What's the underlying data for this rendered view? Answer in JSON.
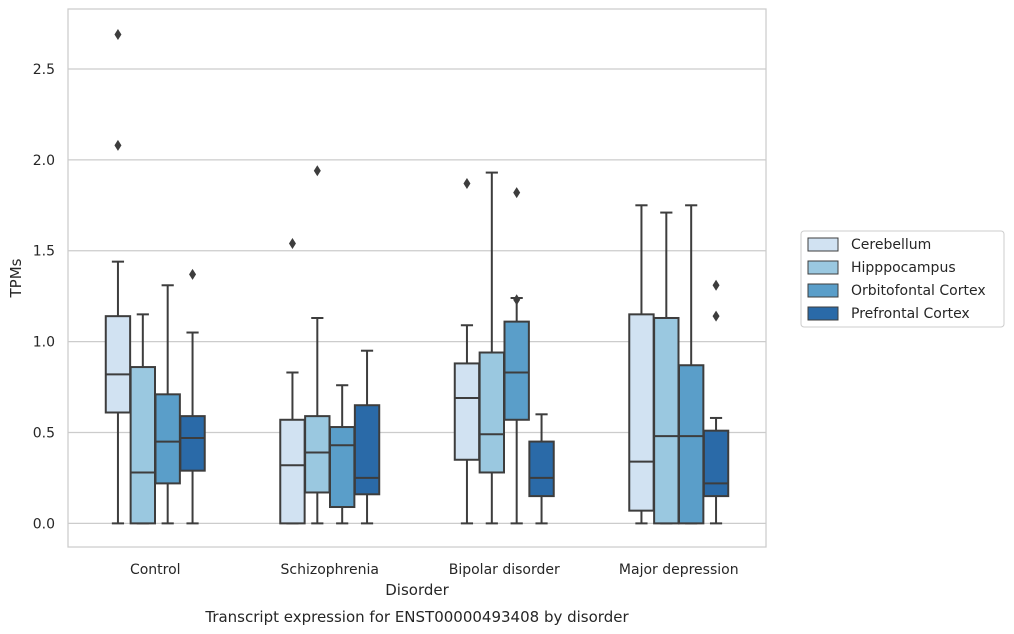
{
  "chart_data": {
    "type": "boxplot",
    "title": "",
    "caption": "Transcript expression for ENST00000493408 by disorder",
    "xlabel": "Disorder",
    "ylabel": "TPMs",
    "ylim": [
      -0.13,
      2.83
    ],
    "yticks": [
      0.0,
      0.5,
      1.0,
      1.5,
      2.0,
      2.5
    ],
    "ytick_labels": [
      "0.0",
      "0.5",
      "1.0",
      "1.5",
      "2.0",
      "2.5"
    ],
    "categories": [
      "Control",
      "Schizophrenia",
      "Bipolar disorder",
      "Major depression"
    ],
    "grid": "horizontal",
    "legend_placement": "right",
    "series": [
      {
        "name": "Cerebellum",
        "color": "#d1e2f2",
        "boxes": [
          {
            "whisker_low": 0.0,
            "q1": 0.61,
            "median": 0.82,
            "q3": 1.14,
            "whisker_high": 1.44,
            "outliers": [
              2.08,
              2.69
            ]
          },
          {
            "whisker_low": 0.0,
            "q1": 0.0,
            "median": 0.32,
            "q3": 0.57,
            "whisker_high": 0.83,
            "outliers": [
              1.54
            ]
          },
          {
            "whisker_low": 0.0,
            "q1": 0.35,
            "median": 0.69,
            "q3": 0.88,
            "whisker_high": 1.09,
            "outliers": [
              1.87
            ]
          },
          {
            "whisker_low": 0.0,
            "q1": 0.07,
            "median": 0.34,
            "q3": 1.15,
            "whisker_high": 1.75,
            "outliers": []
          }
        ]
      },
      {
        "name": "Hipppocampus",
        "color": "#9ac8e0",
        "boxes": [
          {
            "whisker_low": 0.0,
            "q1": 0.0,
            "median": 0.28,
            "q3": 0.86,
            "whisker_high": 1.15,
            "outliers": []
          },
          {
            "whisker_low": 0.0,
            "q1": 0.17,
            "median": 0.39,
            "q3": 0.59,
            "whisker_high": 1.13,
            "outliers": [
              1.94
            ]
          },
          {
            "whisker_low": 0.0,
            "q1": 0.28,
            "median": 0.49,
            "q3": 0.94,
            "whisker_high": 1.93,
            "outliers": []
          },
          {
            "whisker_low": 0.0,
            "q1": 0.0,
            "median": 0.48,
            "q3": 1.13,
            "whisker_high": 1.71,
            "outliers": []
          }
        ]
      },
      {
        "name": "Orbitofontal Cortex",
        "color": "#5a9ec9",
        "boxes": [
          {
            "whisker_low": 0.0,
            "q1": 0.22,
            "median": 0.45,
            "q3": 0.71,
            "whisker_high": 1.31,
            "outliers": []
          },
          {
            "whisker_low": 0.0,
            "q1": 0.09,
            "median": 0.43,
            "q3": 0.53,
            "whisker_high": 0.76,
            "outliers": []
          },
          {
            "whisker_low": 0.0,
            "q1": 0.57,
            "median": 0.83,
            "q3": 1.11,
            "whisker_high": 1.24,
            "outliers": [
              1.23,
              1.82
            ]
          },
          {
            "whisker_low": 0.0,
            "q1": 0.0,
            "median": 0.48,
            "q3": 0.87,
            "whisker_high": 1.75,
            "outliers": []
          }
        ]
      },
      {
        "name": "Prefrontal Cortex",
        "color": "#2a6aa8",
        "boxes": [
          {
            "whisker_low": 0.0,
            "q1": 0.29,
            "median": 0.47,
            "q3": 0.59,
            "whisker_high": 1.05,
            "outliers": [
              1.37
            ]
          },
          {
            "whisker_low": 0.0,
            "q1": 0.16,
            "median": 0.25,
            "q3": 0.65,
            "whisker_high": 0.95,
            "outliers": []
          },
          {
            "whisker_low": 0.0,
            "q1": 0.15,
            "median": 0.25,
            "q3": 0.45,
            "whisker_high": 0.6,
            "outliers": []
          },
          {
            "whisker_low": 0.0,
            "q1": 0.15,
            "median": 0.22,
            "q3": 0.51,
            "whisker_high": 0.58,
            "outliers": [
              1.14,
              1.31
            ]
          }
        ]
      }
    ]
  }
}
